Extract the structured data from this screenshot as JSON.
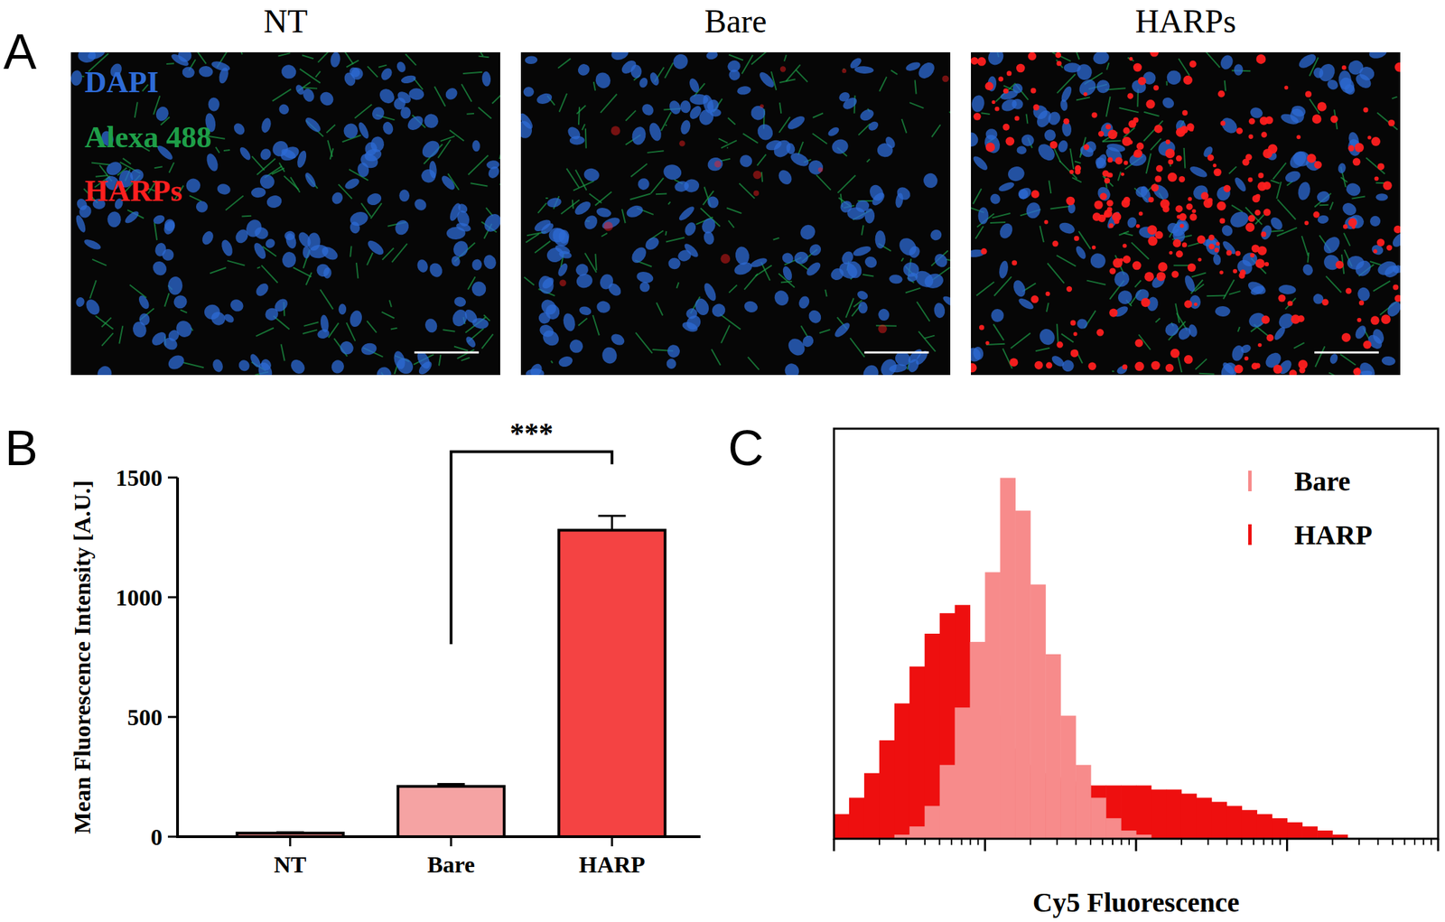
{
  "chart_data": [
    {
      "type": "image",
      "panel_label": "A",
      "panels": [
        {
          "title": "NT"
        },
        {
          "title": "Bare"
        },
        {
          "title": "HARPs"
        }
      ],
      "channels": [
        {
          "name": "DAPI",
          "color": "#2e6bd6"
        },
        {
          "name": "Alexa 488",
          "color": "#1e9e48"
        },
        {
          "name": "HARPs",
          "color": "#ff1f1f"
        }
      ]
    },
    {
      "type": "bar",
      "panel_label": "B",
      "y_label": "Mean Fluorescence Intensity [A.U.]",
      "categories": [
        "NT",
        "Bare",
        "HARP"
      ],
      "values": [
        15,
        210,
        1280
      ],
      "errors": [
        3,
        10,
        60
      ],
      "colors": [
        "#f08080",
        "#f5a3a3",
        "#f44343"
      ],
      "ylim": [
        0,
        1500
      ],
      "yticks": [
        0,
        500,
        1000,
        1500
      ],
      "annotations": [
        {
          "text": "***",
          "between": [
            "Bare",
            "HARP"
          ]
        }
      ]
    },
    {
      "type": "histogram",
      "panel_label": "C",
      "x_label": "Cy5 Fluorescence",
      "log": "x",
      "tick_labels": false,
      "legend": "upper right",
      "bins": [
        1,
        1.259,
        1.585,
        1.995,
        2.512,
        3.162,
        3.981,
        5.012,
        6.31,
        7.943,
        10,
        12.59,
        15.85,
        19.95,
        25.12,
        31.62,
        39.81,
        50.12,
        63.1,
        79.43,
        100,
        125.9,
        158.5,
        199.5,
        251.2,
        316.2,
        398.1,
        501.2,
        631,
        794.3,
        1000,
        1259,
        1585,
        1995,
        2512,
        3162,
        3981,
        5012,
        6310,
        7943,
        10000
      ],
      "xlim": [
        1,
        10000
      ],
      "xticks": [
        1,
        2,
        3,
        4,
        5,
        6,
        7,
        8,
        9,
        10,
        20,
        30,
        40,
        50,
        60,
        70,
        80,
        90,
        100,
        200,
        300,
        400,
        500,
        600,
        700,
        800,
        900,
        1000,
        2000,
        3000,
        4000,
        5000,
        6000,
        7000,
        8000,
        9000,
        10000
      ],
      "ylim": [
        0,
        100
      ],
      "series": [
        {
          "name": "Bare",
          "color": "#f78b8b",
          "values": [
            0,
            0,
            0,
            0,
            1,
            3,
            8,
            18,
            32,
            48,
            65,
            88,
            80,
            62,
            45,
            30,
            18,
            10,
            5,
            2,
            1,
            0,
            0,
            0,
            0,
            0,
            0,
            0,
            0,
            0,
            0,
            0,
            0,
            0,
            0,
            0,
            0,
            0,
            0,
            0
          ]
        },
        {
          "name": "HARP",
          "color": "#ee0f0f",
          "values": [
            6,
            10,
            16,
            24,
            33,
            42,
            50,
            55,
            57,
            45,
            30,
            22,
            18,
            16,
            15,
            14,
            13,
            13,
            13,
            13,
            13,
            12,
            12,
            11,
            10,
            9,
            8,
            7,
            6,
            5,
            4,
            3,
            2,
            1,
            0,
            0,
            0,
            0,
            0,
            0
          ]
        }
      ]
    }
  ]
}
